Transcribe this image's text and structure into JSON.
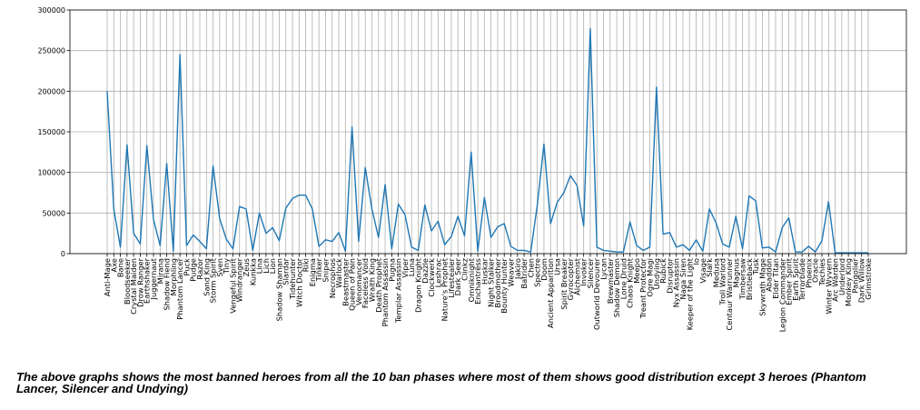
{
  "chart_data": {
    "type": "line",
    "xlabel": "",
    "ylabel": "",
    "ylim": [
      0,
      300000
    ],
    "yticks": [
      0,
      50000,
      100000,
      150000,
      200000,
      250000,
      300000
    ],
    "grid": true,
    "line_color": "#1f77b4",
    "categories": [
      "Anti-Mage",
      "Axe",
      "Bane",
      "Bloodseeker",
      "Crystal Maiden",
      "Drow Ranger",
      "Earthshaker",
      "Juggernaut",
      "Mirana",
      "Shadow Fiend",
      "Morphling",
      "Phantom Lancer",
      "Puck",
      "Pudge",
      "Razor",
      "Sand King",
      "Storm Spirit",
      "Sven",
      "Tiny",
      "Vengeful Spirit",
      "Windranger",
      "Zeus",
      "Kunkka",
      "Lina",
      "Lich",
      "Lion",
      "Shadow Shaman",
      "Slardar",
      "Tidehunter",
      "Witch Doctor",
      "Riki",
      "Enigma",
      "Tinker",
      "Sniper",
      "Necrophos",
      "Warlock",
      "Beastmaster",
      "Queen of Pain",
      "Venomancer",
      "Faceless Void",
      "Wraith King",
      "Death Prophet",
      "Phantom Assassin",
      "Pugna",
      "Templar Assassin",
      "Viper",
      "Luna",
      "Dragon Knight",
      "Dazzle",
      "Clockwerk",
      "Leshrac",
      "Nature's Prophet",
      "Lifestealer",
      "Dark Seer",
      "Clinkz",
      "Omniknight",
      "Enchantress",
      "Huskar",
      "Night Stalker",
      "Broodmother",
      "Bounty Hunter",
      "Weaver",
      "Jakiro",
      "Batrider",
      "Chen",
      "Spectre",
      "Doom",
      "Ancient Apparition",
      "Ursa",
      "Spirit Breaker",
      "Gyrocopter",
      "Alchemist",
      "Invoker",
      "Silencer",
      "Outworld Devourer",
      "Lycan",
      "Brewmaster",
      "Shadow Demon",
      "Lone Druid",
      "Chaos Knight",
      "Meepo",
      "Treant Protector",
      "Ogre Magi",
      "Undying",
      "Rubick",
      "Disruptor",
      "Nyx Assassin",
      "Naga Siren",
      "Keeper of the Light",
      "Io",
      "Visage",
      "Slark",
      "Medusa",
      "Troll Warlord",
      "Centaur Warrunner",
      "Magnus",
      "Timbersaw",
      "Bristleback",
      "Tusk",
      "Skywrath Mage",
      "Abaddon",
      "Elder Titan",
      "Legion Commander",
      "Ember Spirit",
      "Earth Spirit",
      "Terrorblade",
      "Phoenix",
      "Oracle",
      "Techies",
      "Winter Wyvern",
      "Arc Warden",
      "Underlord",
      "Monkey King",
      "Pangolier",
      "Dark Willow",
      "Grimstroke"
    ],
    "values": [
      200000,
      55000,
      8000,
      134000,
      25000,
      12000,
      133000,
      42000,
      10000,
      111000,
      3000,
      245000,
      10000,
      23000,
      15000,
      6000,
      108000,
      43000,
      18000,
      6000,
      58000,
      55000,
      4000,
      50000,
      25000,
      32000,
      16000,
      56000,
      68000,
      72000,
      72000,
      55000,
      9000,
      17000,
      15000,
      26000,
      3000,
      156000,
      15000,
      106000,
      55000,
      20000,
      85000,
      6000,
      61000,
      48000,
      8000,
      4000,
      60000,
      28000,
      40000,
      11000,
      21000,
      46000,
      22000,
      125000,
      3000,
      69000,
      20000,
      33000,
      37000,
      9000,
      4000,
      4000,
      2000,
      60000,
      135000,
      37000,
      63000,
      75000,
      96000,
      84000,
      34000,
      277000,
      8000,
      4000,
      3000,
      2000,
      2000,
      39000,
      10000,
      4000,
      8000,
      205000,
      24000,
      26000,
      8000,
      11000,
      4000,
      17000,
      3000,
      55000,
      38000,
      12000,
      8000,
      46000,
      6000,
      71000,
      65000,
      7000,
      8000,
      2000,
      32000,
      44000,
      2000,
      2000,
      9000,
      2000,
      16000,
      64000,
      1000,
      1000,
      1000,
      1000,
      1000,
      1000
    ]
  },
  "caption": "The above graphs shows the most banned heroes from all the 10 ban phases where most of them shows good distribution except 3 heroes (Phantom Lancer, Silencer and Undying)"
}
